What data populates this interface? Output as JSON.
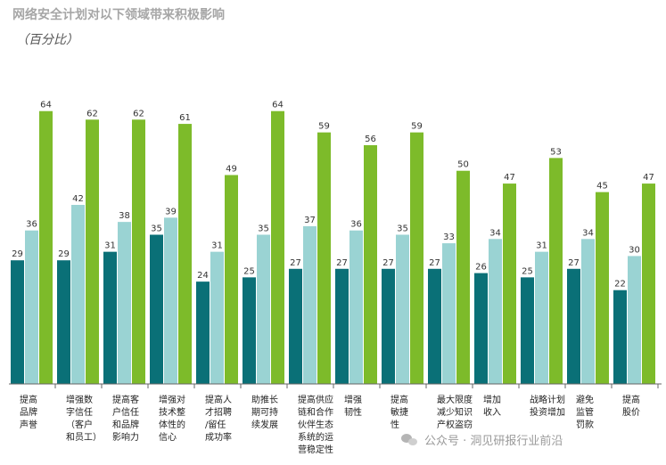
{
  "header": {
    "title": "网络安全计划对以下领域带来积极影响",
    "subtitle": "（百分比）"
  },
  "watermark": {
    "text": "公众号 · 洞见研报行业前沿"
  },
  "colors": {
    "series1": "#0a7077",
    "series2": "#9ad3d3",
    "series3": "#7dbb2a"
  },
  "chart_data": {
    "type": "bar",
    "title": "网络安全计划对以下领域带来积极影响",
    "subtitle": "（百分比）",
    "ylim": [
      0,
      70
    ],
    "categories": [
      [
        "提高",
        "品牌",
        "声誉"
      ],
      [
        "增强数",
        "字信任",
        "（客户",
        "和员工）"
      ],
      [
        "提高客",
        "户信任",
        "和品牌",
        "影响力"
      ],
      [
        "增强对",
        "技术整",
        "体性的",
        "信心"
      ],
      [
        "提高人",
        "才招聘",
        "/留任",
        "成功率"
      ],
      [
        "助推长",
        "期可持",
        "续发展"
      ],
      [
        "提高供应",
        "链和合作",
        "伙伴生态",
        "系统的运",
        "营稳定性"
      ],
      [
        "增强",
        "韧性"
      ],
      [
        "提高",
        "敏捷",
        "性"
      ],
      [
        "最大限度",
        "减少知识",
        "产权盗窃"
      ],
      [
        "增加",
        "收入"
      ],
      [
        "战略计划",
        "投资增加"
      ],
      [
        "避免",
        "监管",
        "罚款"
      ],
      [
        "提高",
        "股价"
      ]
    ],
    "series": [
      {
        "values": [
          29,
          29,
          31,
          35,
          24,
          25,
          27,
          27,
          27,
          27,
          26,
          25,
          27,
          22
        ]
      },
      {
        "values": [
          36,
          42,
          38,
          39,
          31,
          35,
          37,
          36,
          35,
          33,
          34,
          31,
          34,
          30
        ]
      },
      {
        "values": [
          64,
          62,
          62,
          61,
          49,
          64,
          59,
          56,
          59,
          50,
          47,
          53,
          45,
          47
        ]
      }
    ]
  }
}
